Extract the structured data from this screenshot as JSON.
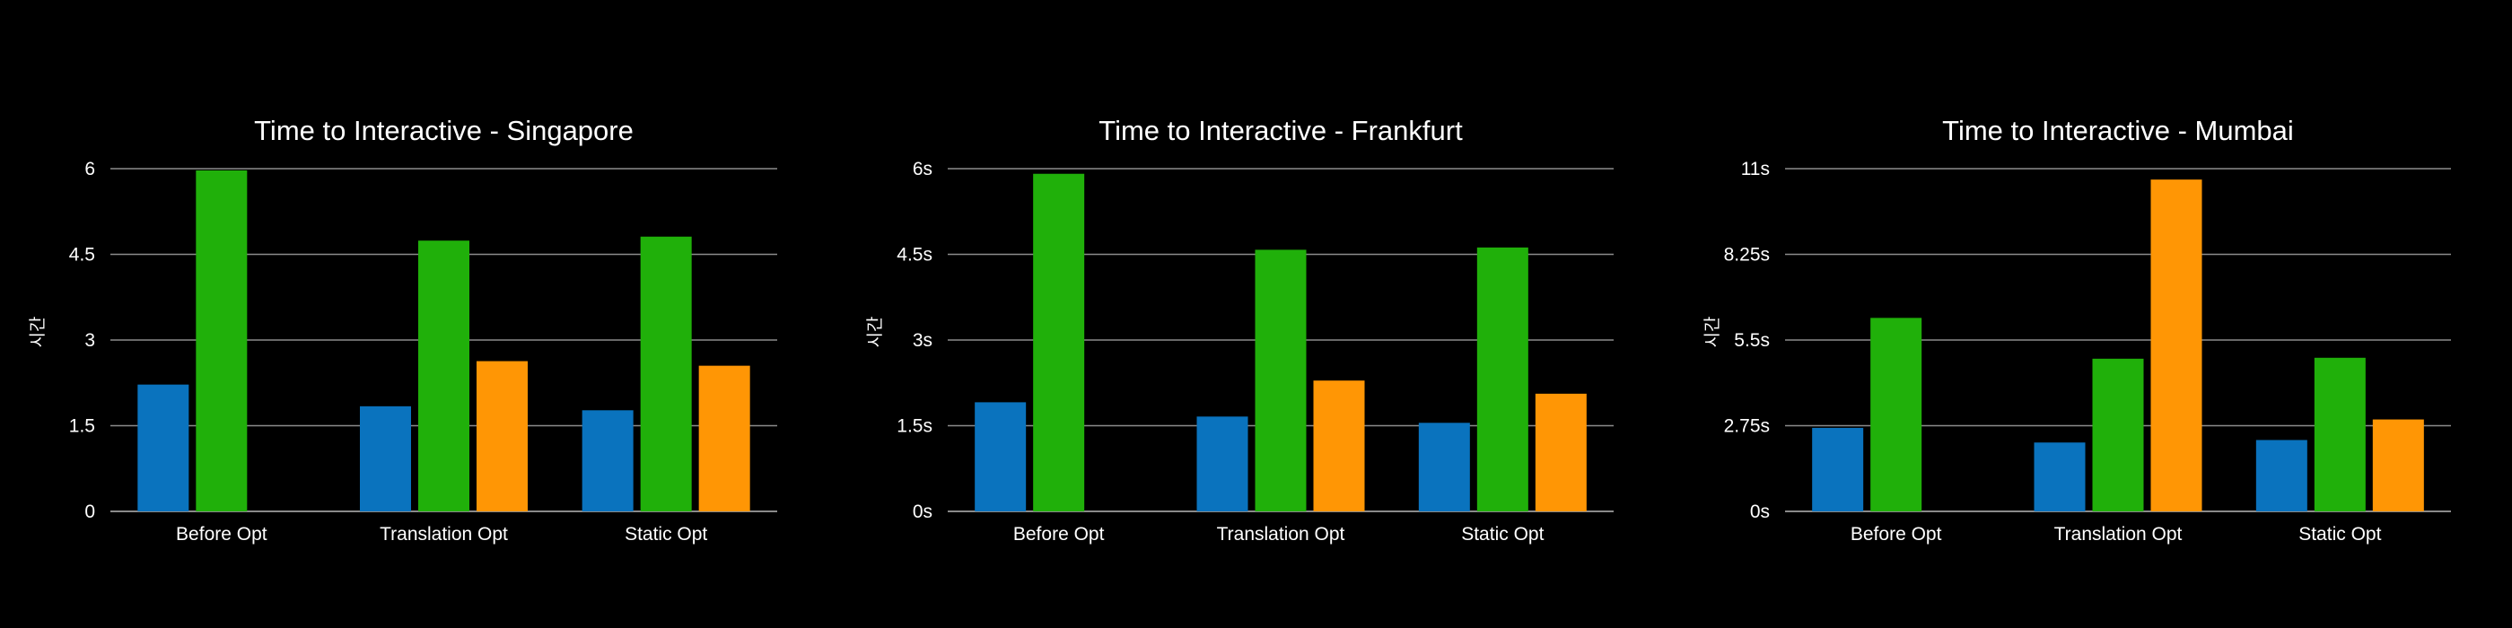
{
  "colors": {
    "background": "#000000",
    "series": [
      "#0a73be",
      "#20b00a",
      "#ff9605"
    ],
    "grid": "#8c8c8c",
    "text": "#ffffff"
  },
  "chart_data": [
    {
      "type": "bar",
      "title": "Time to Interactive - Singapore",
      "ylabel": "시간",
      "categories": [
        "Before Opt",
        "Translation Opt",
        "Static Opt"
      ],
      "yticks": [
        "0",
        "1.5",
        "3",
        "4.5",
        "6"
      ],
      "ylim": [
        0,
        6
      ],
      "grid": true,
      "series": [
        {
          "values": [
            2.22,
            1.84,
            1.77
          ]
        },
        {
          "values": [
            5.97,
            4.74,
            4.81
          ]
        },
        {
          "values": [
            null,
            2.63,
            2.55
          ]
        }
      ]
    },
    {
      "type": "bar",
      "title": "Time to Interactive - Frankfurt",
      "ylabel": "시간",
      "categories": [
        "Before Opt",
        "Translation Opt",
        "Static Opt"
      ],
      "yticks": [
        "0s",
        "1.5s",
        "3s",
        "4.5s",
        "6s"
      ],
      "ylim": [
        0,
        6
      ],
      "grid": true,
      "series": [
        {
          "values": [
            1.91,
            1.66,
            1.55
          ]
        },
        {
          "values": [
            5.91,
            4.58,
            4.62
          ]
        },
        {
          "values": [
            null,
            2.29,
            2.06
          ]
        }
      ]
    },
    {
      "type": "bar",
      "title": "Time to Interactive - Mumbai",
      "ylabel": "시간",
      "categories": [
        "Before Opt",
        "Translation Opt",
        "Static Opt"
      ],
      "yticks": [
        "0s",
        "2.75s",
        "5.5s",
        "8.25s",
        "11s"
      ],
      "ylim": [
        0,
        11
      ],
      "grid": true,
      "series": [
        {
          "values": [
            2.68,
            2.21,
            2.29
          ]
        },
        {
          "values": [
            6.21,
            4.9,
            4.93
          ]
        },
        {
          "values": [
            null,
            10.65,
            2.95
          ]
        }
      ]
    }
  ]
}
